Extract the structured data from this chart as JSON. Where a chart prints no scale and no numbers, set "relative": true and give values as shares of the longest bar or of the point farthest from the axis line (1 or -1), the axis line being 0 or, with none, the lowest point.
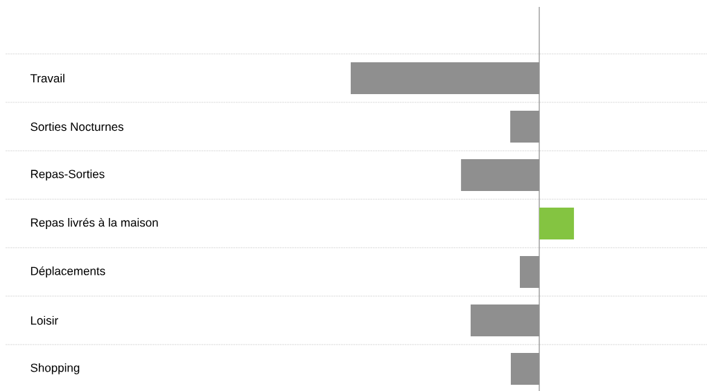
{
  "chart_data": {
    "type": "bar",
    "orientation": "horizontal",
    "relative": true,
    "grid": "y",
    "categories": [
      "Travail",
      "Sorties Nocturnes",
      "Repas-Sorties",
      "Repas livrés à la maison",
      "Déplacements",
      "Loisir",
      "Shopping"
    ],
    "values": [
      -1,
      -0.154,
      -0.415,
      0.184,
      -0.103,
      -0.364,
      -0.151
    ],
    "colors": [
      "#8f8f8f",
      "#8f8f8f",
      "#8f8f8f",
      "#84c441",
      "#8f8f8f",
      "#8f8f8f",
      "#8f8f8f"
    ]
  }
}
